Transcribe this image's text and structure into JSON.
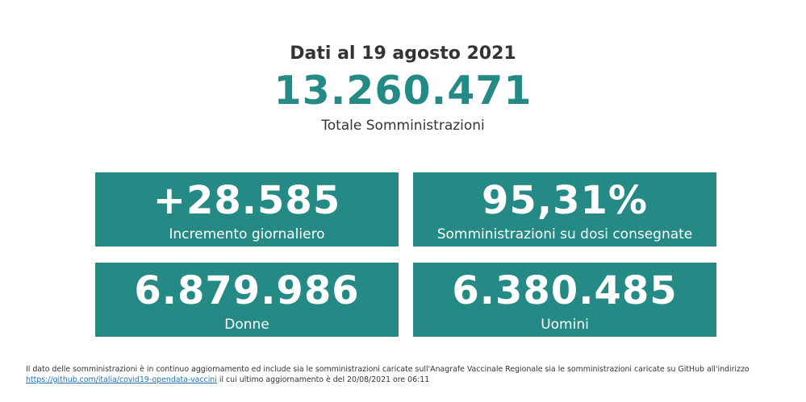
{
  "header": {
    "date_line": "Dati al 19 agosto 2021",
    "total_value": "13.260.471",
    "total_label": "Totale Somministrazioni"
  },
  "cards": [
    {
      "value": "+28.585",
      "label": "Incremento giornaliero"
    },
    {
      "value": "95,31%",
      "label": "Somministrazioni su dosi consegnate"
    },
    {
      "value": "6.879.986",
      "label": "Donne"
    },
    {
      "value": "6.380.485",
      "label": "Uomini"
    }
  ],
  "footer": {
    "text_before": "Il dato delle somministrazioni è in continuo aggiornamento ed include sia le somministrazioni caricate sull'Anagrafe Vaccinale Regionale sia le somministrazioni caricate su GitHub all'indirizzo ",
    "link_text": "https://github.com/italia/covid19-opendata-vaccini",
    "text_after": " il cui ultimo aggiornamento è del 20/08/2021 ore 06:11"
  },
  "colors": {
    "accent": "#258a85",
    "text": "#333333",
    "link": "#1f6fb5"
  }
}
